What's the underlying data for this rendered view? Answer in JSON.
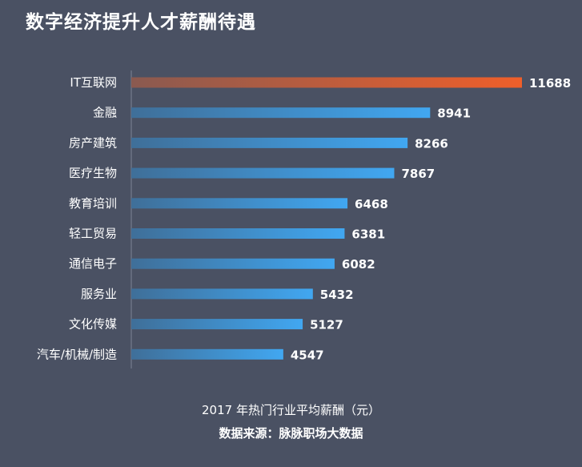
{
  "title": "数字经济提升人才薪酬待遇",
  "footer": {
    "caption": "2017 年热门行业平均薪酬（元）",
    "source": "数据来源：脉脉职场大数据"
  },
  "colors": {
    "background": "#4a5163",
    "axis": "#7c8496",
    "bar_start": "#3f6f99",
    "bar_end": "#41a7f1",
    "highlight_start": "#8a5a50",
    "highlight_end": "#ef5f2a"
  },
  "chart_data": {
    "type": "bar",
    "orientation": "horizontal",
    "categories": [
      "IT互联网",
      "金融",
      "房产建筑",
      "医疗生物",
      "教育培训",
      "轻工贸易",
      "通信电子",
      "服务业",
      "文化传媒",
      "汽车/机械/制造"
    ],
    "values": [
      11688,
      8941,
      8266,
      7867,
      6468,
      6381,
      6082,
      5432,
      5127,
      4547
    ],
    "highlight_index": 0,
    "xlim": [
      0,
      11688
    ],
    "grid": false,
    "legend": "none"
  }
}
